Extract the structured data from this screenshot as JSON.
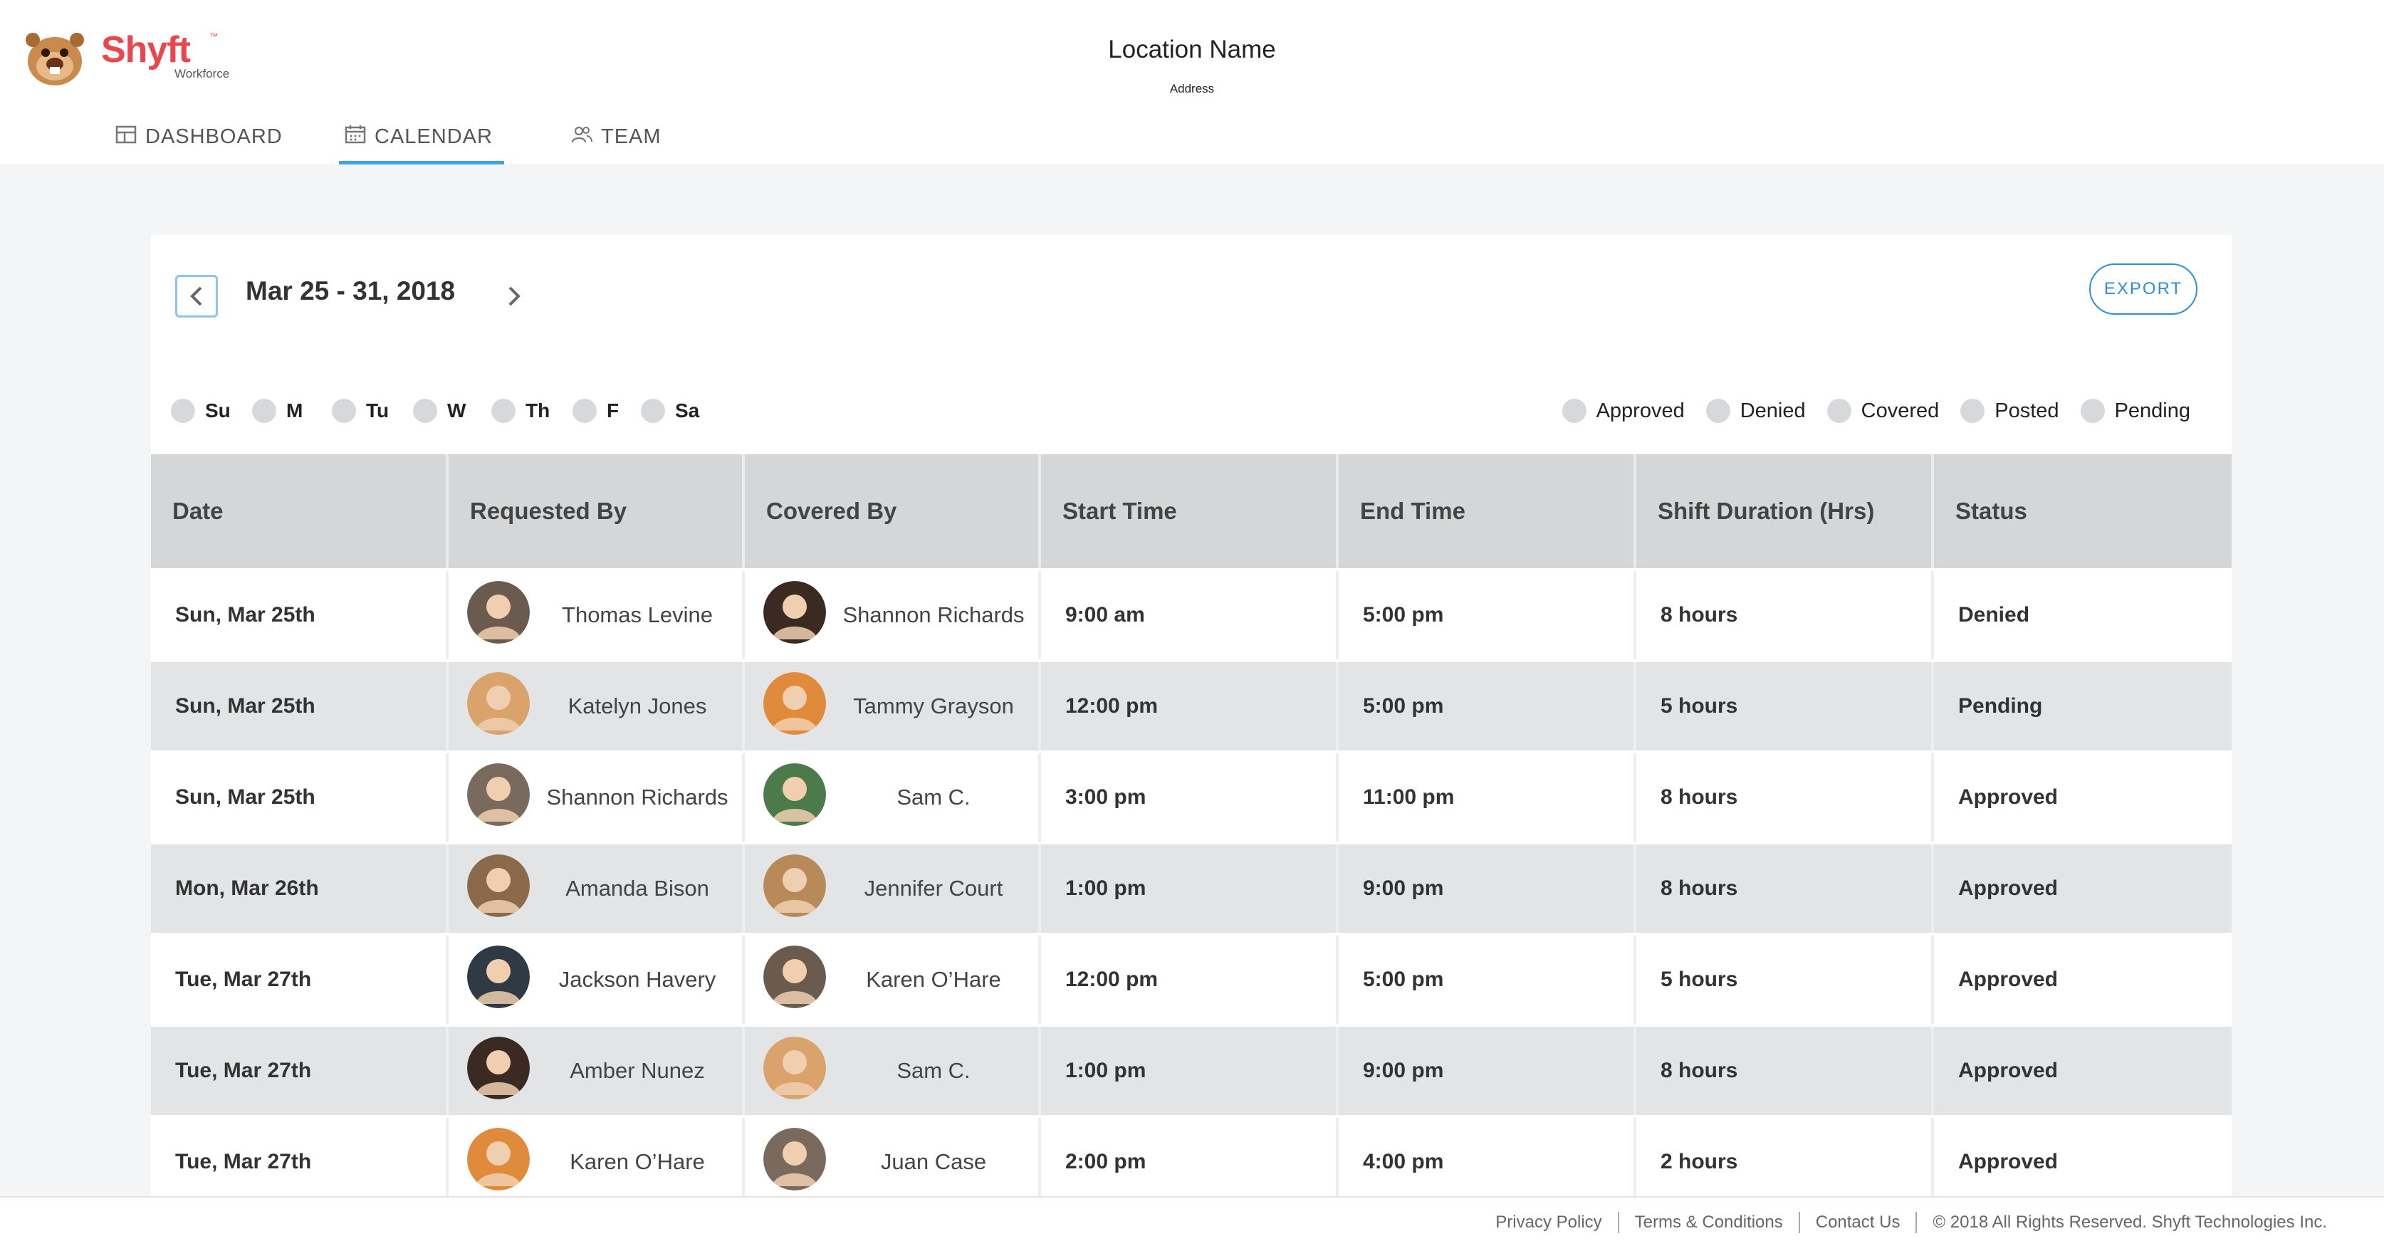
{
  "brand": {
    "name": "Shyft",
    "tm": "™",
    "sub": "Workforce",
    "color": "#e8484d"
  },
  "location": {
    "name": "Location Name",
    "address": "Address"
  },
  "nav": {
    "dashboard": "DASHBOARD",
    "calendar": "CALENDAR",
    "team": "TEAM",
    "active": "calendar",
    "accent": "#3ba3e8"
  },
  "toolbar": {
    "range": "Mar 25 - 31, 2018",
    "export": "EXPORT"
  },
  "days": [
    "Su",
    "M",
    "Tu",
    "W",
    "Th",
    "F",
    "Sa"
  ],
  "legend": [
    "Approved",
    "Denied",
    "Covered",
    "Posted",
    "Pending"
  ],
  "table": {
    "headers": [
      "Date",
      "Requested By",
      "Covered By",
      "Start Time",
      "End Time",
      "Shift Duration (Hrs)",
      "Status"
    ],
    "rows": [
      {
        "date": "Sun, Mar 25th",
        "requested_by": "Thomas Levine",
        "covered_by": "Shannon Richards",
        "start": "9:00 am",
        "end": "5:00 pm",
        "duration": "8 hours",
        "status": "Denied"
      },
      {
        "date": "Sun, Mar 25th",
        "requested_by": "Katelyn Jones",
        "covered_by": "Tammy Grayson",
        "start": "12:00 pm",
        "end": "5:00 pm",
        "duration": "5 hours",
        "status": "Pending"
      },
      {
        "date": "Sun, Mar 25th",
        "requested_by": "Shannon Richards",
        "covered_by": "Sam C.",
        "start": "3:00 pm",
        "end": "11:00 pm",
        "duration": "8 hours",
        "status": "Approved"
      },
      {
        "date": "Mon, Mar 26th",
        "requested_by": "Amanda Bison",
        "covered_by": "Jennifer Court",
        "start": "1:00 pm",
        "end": "9:00 pm",
        "duration": "8 hours",
        "status": "Approved"
      },
      {
        "date": "Tue, Mar 27th",
        "requested_by": "Jackson Havery",
        "covered_by": "Karen O’Hare",
        "start": "12:00 pm",
        "end": "5:00 pm",
        "duration": "5 hours",
        "status": "Approved"
      },
      {
        "date": "Tue, Mar 27th",
        "requested_by": "Amber Nunez",
        "covered_by": "Sam C.",
        "start": "1:00 pm",
        "end": "9:00 pm",
        "duration": "8 hours",
        "status": "Approved"
      },
      {
        "date": "Tue, Mar 27th",
        "requested_by": "Karen O’Hare",
        "covered_by": "Juan Case",
        "start": "2:00 pm",
        "end": "4:00 pm",
        "duration": "2 hours",
        "status": "Approved"
      }
    ]
  },
  "footer": {
    "privacy": "Privacy Policy",
    "terms": "Terms & Conditions",
    "contact": "Contact Us",
    "copyright": "© 2018 All Rights Reserved. Shyft Technologies Inc."
  }
}
